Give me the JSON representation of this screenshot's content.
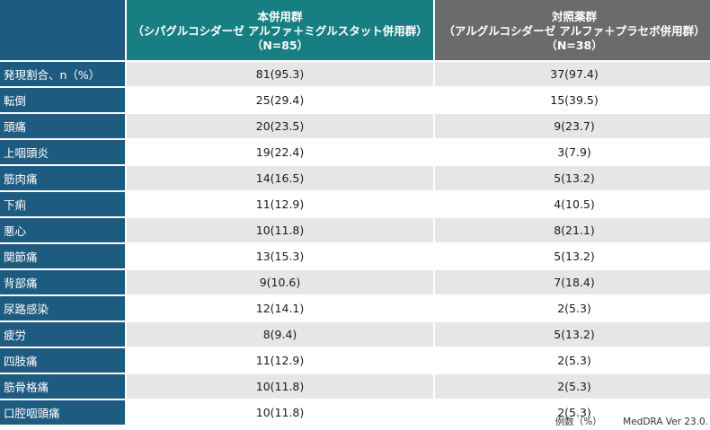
{
  "header": {
    "drug_title": "本併用群",
    "drug_subtitle": "（シパグルコシダーゼ アルファ＋ミグルスタット併用群）",
    "drug_n": "（N=85）",
    "ctrl_title": "対照薬群",
    "ctrl_subtitle": "（アルグルコシダーゼ アルファ＋プラセボ併用群）",
    "ctrl_n": "（N=38）"
  },
  "rows": [
    {
      "label": "発現割合、n（%）",
      "drug": "81(95.3)",
      "ctrl": "37(97.4)"
    },
    {
      "label": "転倒",
      "drug": "25(29.4)",
      "ctrl": "15(39.5)"
    },
    {
      "label": "頭痛",
      "drug": "20(23.5)",
      "ctrl": "9(23.7)"
    },
    {
      "label": "上咽頭炎",
      "drug": "19(22.4)",
      "ctrl": "3(7.9)"
    },
    {
      "label": "筋肉痛",
      "drug": "14(16.5)",
      "ctrl": "5(13.2)"
    },
    {
      "label": "下痢",
      "drug": "11(12.9)",
      "ctrl": "4(10.5)"
    },
    {
      "label": "悪心",
      "drug": "10(11.8)",
      "ctrl": "8(21.1)"
    },
    {
      "label": "関節痛",
      "drug": "13(15.3)",
      "ctrl": "5(13.2)"
    },
    {
      "label": "背部痛",
      "drug": "9(10.6)",
      "ctrl": "7(18.4)"
    },
    {
      "label": "尿路感染",
      "drug": "12(14.1)",
      "ctrl": "2(5.3)"
    },
    {
      "label": "疲労",
      "drug": "8(9.4)",
      "ctrl": "5(13.2)"
    },
    {
      "label": "四肢痛",
      "drug": "11(12.9)",
      "ctrl": "2(5.3)"
    },
    {
      "label": "筋骨格痛",
      "drug": "10(11.8)",
      "ctrl": "2(5.3)"
    },
    {
      "label": "口腔咽頭痛",
      "drug": "10(11.8)",
      "ctrl": "2(5.3)"
    }
  ],
  "footnote": {
    "unit": "例数（%）",
    "version": "MedDRA Ver 23.0."
  },
  "colors": {
    "label_bg": "#1e5b80",
    "drug_header_bg": "#177f82",
    "ctrl_header_bg": "#6b6b6b",
    "stripe": "#e6e6e6"
  }
}
